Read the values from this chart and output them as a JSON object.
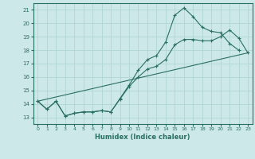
{
  "xlabel": "Humidex (Indice chaleur)",
  "bg_color": "#cce8e8",
  "grid_color": "#b0d4d4",
  "line_color": "#2a7060",
  "xlim": [
    -0.5,
    23.5
  ],
  "ylim": [
    12.5,
    21.5
  ],
  "xticks": [
    0,
    1,
    2,
    3,
    4,
    5,
    6,
    7,
    8,
    9,
    10,
    11,
    12,
    13,
    14,
    15,
    16,
    17,
    18,
    19,
    20,
    21,
    22,
    23
  ],
  "yticks": [
    13,
    14,
    15,
    16,
    17,
    18,
    19,
    20,
    21
  ],
  "line1_x": [
    0,
    1,
    2,
    3,
    4,
    5,
    6,
    7,
    8,
    9,
    10,
    11,
    12,
    13,
    14,
    15,
    16,
    17,
    18,
    19,
    20,
    21,
    22
  ],
  "line1_y": [
    14.2,
    13.6,
    14.2,
    13.1,
    13.3,
    13.4,
    13.4,
    13.5,
    13.4,
    14.4,
    15.4,
    16.5,
    17.3,
    17.6,
    18.6,
    20.6,
    21.15,
    20.5,
    19.7,
    19.4,
    19.3,
    18.5,
    18.0
  ],
  "line2_x": [
    0,
    1,
    2,
    3,
    4,
    5,
    6,
    7,
    8,
    9,
    10,
    11,
    12,
    13,
    14,
    15,
    16,
    17,
    18,
    19,
    20,
    21,
    22,
    23
  ],
  "line2_y": [
    14.2,
    13.6,
    14.2,
    13.1,
    13.3,
    13.4,
    13.4,
    13.5,
    13.4,
    14.35,
    15.3,
    16.0,
    16.6,
    16.8,
    17.3,
    18.4,
    18.8,
    18.8,
    18.7,
    18.7,
    19.0,
    19.5,
    18.9,
    17.8
  ],
  "line3_x": [
    0,
    23
  ],
  "line3_y": [
    14.2,
    17.8
  ]
}
